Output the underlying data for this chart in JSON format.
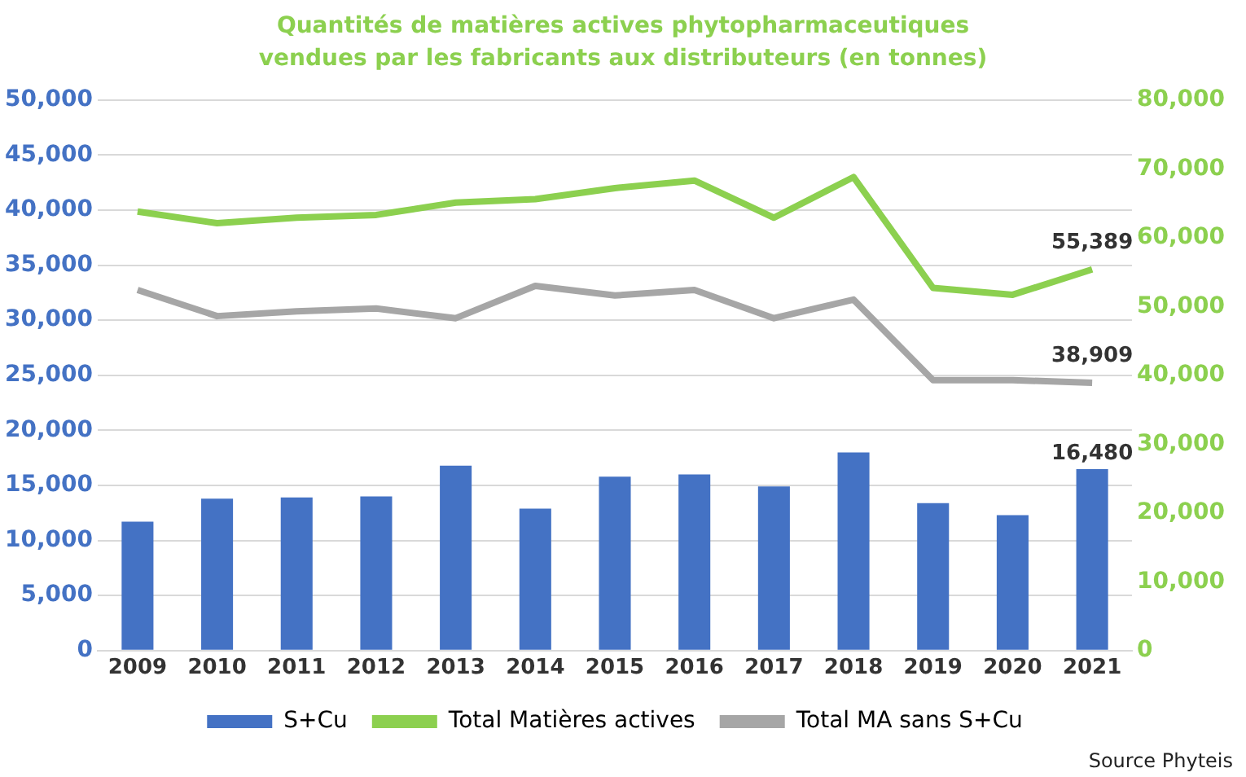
{
  "chart_data": {
    "type": "bar",
    "title": "Quantités de matières actives phytopharmaceutiques\nvendues par les fabricants aux distributeurs (en tonnes)",
    "categories": [
      "2009",
      "2010",
      "2011",
      "2012",
      "2013",
      "2014",
      "2015",
      "2016",
      "2017",
      "2018",
      "2019",
      "2020",
      "2021"
    ],
    "series": [
      {
        "name": "S+Cu",
        "color": "#4472c4",
        "values": [
          11700,
          13800,
          13900,
          14000,
          16800,
          12900,
          15800,
          16000,
          14900,
          18000,
          13400,
          12300,
          16480
        ],
        "value_labels": [
          null,
          null,
          null,
          null,
          null,
          null,
          null,
          null,
          null,
          null,
          null,
          null,
          "16,480"
        ]
      },
      {
        "name": "Total Matières actives",
        "type": "line",
        "axis": "y2",
        "color": "#8cd04f",
        "values": [
          63800,
          62100,
          62900,
          63300,
          65100,
          65600,
          67200,
          68300,
          62900,
          68800,
          52700,
          51700,
          55389
        ],
        "value_labels": [
          null,
          null,
          null,
          null,
          null,
          null,
          null,
          null,
          null,
          null,
          null,
          null,
          "55,389"
        ]
      },
      {
        "name": "Total MA sans S+Cu",
        "type": "line",
        "axis": "y2",
        "color": "#a6a6a6",
        "values": [
          52400,
          48600,
          49300,
          49700,
          48300,
          53000,
          51600,
          52400,
          48300,
          51000,
          39300,
          39300,
          38909
        ],
        "value_labels": [
          null,
          null,
          null,
          null,
          null,
          null,
          null,
          null,
          null,
          null,
          null,
          null,
          "38,909"
        ]
      }
    ],
    "ylim": [
      0,
      50000
    ],
    "yticks": [
      {
        "value": 0,
        "label": "0"
      },
      {
        "value": 5000,
        "label": "5,000"
      },
      {
        "value": 10000,
        "label": "10,000"
      },
      {
        "value": 15000,
        "label": "15,000"
      },
      {
        "value": 20000,
        "label": "20,000"
      },
      {
        "value": 25000,
        "label": "25,000"
      },
      {
        "value": 30000,
        "label": "30,000"
      },
      {
        "value": 35000,
        "label": "35,000"
      },
      {
        "value": 40000,
        "label": "40,000"
      },
      {
        "value": 45000,
        "label": "45,000"
      },
      {
        "value": 50000,
        "label": "50,000"
      }
    ],
    "y2lim": [
      0,
      80000
    ],
    "y2ticks": [
      {
        "value": 0,
        "label": "0"
      },
      {
        "value": 10000,
        "label": "10,000"
      },
      {
        "value": 20000,
        "label": "20,000"
      },
      {
        "value": 30000,
        "label": "30,000"
      },
      {
        "value": 40000,
        "label": "40,000"
      },
      {
        "value": 50000,
        "label": "50,000"
      },
      {
        "value": 60000,
        "label": "60,000"
      },
      {
        "value": 70000,
        "label": "70,000"
      },
      {
        "value": 80000,
        "label": "80,000"
      }
    ],
    "grid": "y",
    "legend": "bottom",
    "marker": "none",
    "annotations": [
      "Source Phyteis"
    ]
  }
}
